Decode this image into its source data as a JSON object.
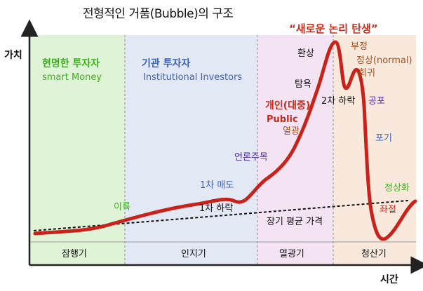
{
  "title": "전형적인 거품(Bubble)의 구조",
  "axes": {
    "y_label": "가치",
    "x_label": "시간"
  },
  "phases": [
    {
      "name": "잠행기",
      "investor_ko": "현명한 투자자",
      "investor_en": "smart Money",
      "color": "#dff3d6"
    },
    {
      "name": "인지기",
      "investor_ko": "기관 투자자",
      "investor_en": "Institutional Investors",
      "color": "#e3e8f5"
    },
    {
      "name": "열광기",
      "investor_ko": "개인(대중)",
      "investor_en": "Public",
      "color": "#f4e4f3"
    },
    {
      "name": "청산기",
      "investor_ko": "",
      "investor_en": "",
      "color": "#f9e8dc"
    }
  ],
  "annotations": {
    "new_paradigm": "“새로운 논리 탄생”",
    "profit": "이륙",
    "first_sell": "1차 매도",
    "first_drop": "1차 하락",
    "media": "언론주목",
    "enthusiasm": "열광",
    "greed": "탐욕",
    "illusion": "환상",
    "second_drop": "2차 하락",
    "denial": "부정",
    "normal": "정상(normal)",
    "return": "회귀",
    "fear": "공포",
    "surrender": "포기",
    "despair": "좌절",
    "normalization": "정상화",
    "long_term_avg": "장기 평균 가격"
  },
  "colors": {
    "curve": "#c8221b",
    "trend": "#111111",
    "axis": "#222222",
    "divider": "#8a8a8a"
  }
}
